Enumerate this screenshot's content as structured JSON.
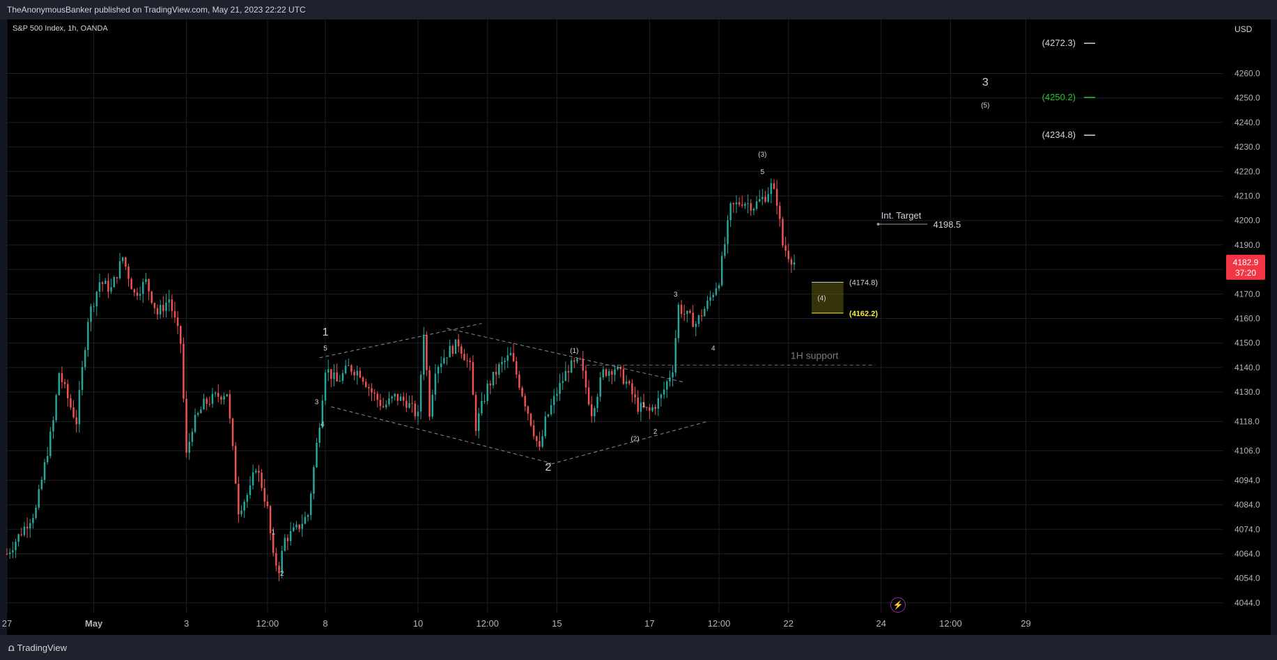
{
  "header": {
    "publisher_line": "TheAnonymousBanker published on TradingView.com, May 21, 2023 22:22 UTC"
  },
  "symbol_line": "S&P 500 Index, 1h, OANDA",
  "currency": "USD",
  "footer": {
    "brand": "TradingView"
  },
  "chart_data": {
    "type": "candlestick",
    "ylim": [
      4040,
      4282
    ],
    "y_ticks": [
      4044.0,
      4054.0,
      4064.0,
      4074.0,
      4084.0,
      4094.0,
      4106.0,
      4118.0,
      4130.0,
      4140.0,
      4150.0,
      4160.0,
      4170.0,
      4180.0,
      4190.0,
      4200.0,
      4210.0,
      4220.0,
      4230.0,
      4240.0,
      4250.0,
      4260.0
    ],
    "x_ticks": [
      "27",
      "May",
      "3",
      "12:00",
      "8",
      "10",
      "12:00",
      "15",
      "17",
      "12:00",
      "22",
      "24",
      "12:00",
      "29"
    ],
    "x_tick_idx": [
      0,
      30,
      62,
      90,
      110,
      142,
      166,
      190,
      222,
      246,
      270,
      302,
      326,
      352
    ],
    "price_path": [
      [
        0,
        4064
      ],
      [
        10,
        4082
      ],
      [
        16,
        4118
      ],
      [
        18,
        4138
      ],
      [
        22,
        4124
      ],
      [
        24,
        4118
      ],
      [
        28,
        4160
      ],
      [
        32,
        4175
      ],
      [
        36,
        4172
      ],
      [
        40,
        4185
      ],
      [
        44,
        4170
      ],
      [
        48,
        4175
      ],
      [
        52,
        4162
      ],
      [
        56,
        4168
      ],
      [
        60,
        4150
      ],
      [
        62,
        4104
      ],
      [
        64,
        4116
      ],
      [
        68,
        4125
      ],
      [
        72,
        4128
      ],
      [
        76,
        4130
      ],
      [
        80,
        4082
      ],
      [
        84,
        4090
      ],
      [
        86,
        4100
      ],
      [
        88,
        4092
      ],
      [
        90,
        4082
      ],
      [
        92,
        4062
      ],
      [
        94,
        4058
      ],
      [
        96,
        4070
      ],
      [
        100,
        4074
      ],
      [
        104,
        4080
      ],
      [
        108,
        4118
      ],
      [
        110,
        4140
      ],
      [
        114,
        4134
      ],
      [
        118,
        4140
      ],
      [
        122,
        4138
      ],
      [
        126,
        4130
      ],
      [
        130,
        4124
      ],
      [
        134,
        4128
      ],
      [
        138,
        4126
      ],
      [
        142,
        4120
      ],
      [
        144,
        4155
      ],
      [
        146,
        4122
      ],
      [
        148,
        4140
      ],
      [
        152,
        4146
      ],
      [
        156,
        4150
      ],
      [
        160,
        4140
      ],
      [
        162,
        4116
      ],
      [
        166,
        4132
      ],
      [
        170,
        4140
      ],
      [
        174,
        4145
      ],
      [
        180,
        4122
      ],
      [
        184,
        4106
      ],
      [
        186,
        4118
      ],
      [
        190,
        4130
      ],
      [
        194,
        4140
      ],
      [
        198,
        4142
      ],
      [
        202,
        4122
      ],
      [
        206,
        4138
      ],
      [
        210,
        4140
      ],
      [
        214,
        4134
      ],
      [
        218,
        4124
      ],
      [
        222,
        4122
      ],
      [
        226,
        4128
      ],
      [
        230,
        4140
      ],
      [
        232,
        4165
      ],
      [
        234,
        4162
      ],
      [
        238,
        4158
      ],
      [
        242,
        4166
      ],
      [
        246,
        4176
      ],
      [
        250,
        4205
      ],
      [
        254,
        4208
      ],
      [
        258,
        4206
      ],
      [
        262,
        4210
      ],
      [
        264,
        4214
      ],
      [
        266,
        4208
      ],
      [
        268,
        4190
      ],
      [
        270,
        4186
      ],
      [
        272,
        4182.9
      ]
    ],
    "last_price": 4182.9,
    "countdown": "37:20",
    "horizontal_levels": [
      {
        "label": "(4272.3)",
        "value": 4272.3,
        "color": "#d1d4dc"
      },
      {
        "label": "(4250.2)",
        "value": 4250.2,
        "color": "#26c726"
      },
      {
        "label": "(4234.8)",
        "value": 4234.8,
        "color": "#d1d4dc"
      }
    ],
    "target": {
      "label": "Int. Target",
      "value_label": "4198.5",
      "value": 4198.5
    },
    "support": {
      "label": "1H support",
      "value": 4141
    },
    "zone": {
      "top_label": "(4174.8)",
      "top": 4174.8,
      "bottom_label": "(4162.2)",
      "bottom": 4162.2,
      "label": "(4)"
    },
    "wave_labels": [
      {
        "text": "1",
        "i": 110,
        "v": 4153,
        "big": true
      },
      {
        "text": "5",
        "i": 110,
        "v": 4147,
        "big": false
      },
      {
        "text": "3",
        "i": 107,
        "v": 4125,
        "big": false
      },
      {
        "text": "4",
        "i": 109,
        "v": 4116,
        "big": false
      },
      {
        "text": "1",
        "i": 92,
        "v": 4072,
        "big": false
      },
      {
        "text": "2",
        "i": 95,
        "v": 4055,
        "big": false
      },
      {
        "text": "2",
        "i": 187,
        "v": 4098,
        "big": true
      },
      {
        "text": "(1)",
        "i": 196,
        "v": 4146,
        "big": false
      },
      {
        "text": "1",
        "i": 220,
        "v": 4124,
        "big": false
      },
      {
        "text": "(2)",
        "i": 217,
        "v": 4110,
        "big": false
      },
      {
        "text": "2",
        "i": 224,
        "v": 4113,
        "big": false
      },
      {
        "text": "3",
        "i": 231,
        "v": 4169,
        "big": false
      },
      {
        "text": "4",
        "i": 244,
        "v": 4147,
        "big": false
      },
      {
        "text": "(3)",
        "i": 261,
        "v": 4226,
        "big": false
      },
      {
        "text": "5",
        "i": 261,
        "v": 4219,
        "big": false
      },
      {
        "text": "3",
        "i": 338,
        "v": 4255,
        "big": true
      },
      {
        "text": "(5)",
        "i": 338,
        "v": 4246,
        "big": false
      }
    ],
    "trendlines": [
      {
        "points": [
          [
            108,
            4144
          ],
          [
            164,
            4158
          ]
        ]
      },
      {
        "points": [
          [
            112,
            4124
          ],
          [
            188,
            4101
          ]
        ]
      },
      {
        "points": [
          [
            152,
            4156
          ],
          [
            234,
            4134
          ]
        ]
      },
      {
        "points": [
          [
            186,
            4100
          ],
          [
            242,
            4118
          ]
        ]
      }
    ]
  },
  "colors": {
    "up": "#26a69a",
    "down": "#ef5350",
    "background": "#000000",
    "grid": "#1c1f27",
    "accent": "#f23645",
    "zone": "#ffeb3b"
  }
}
